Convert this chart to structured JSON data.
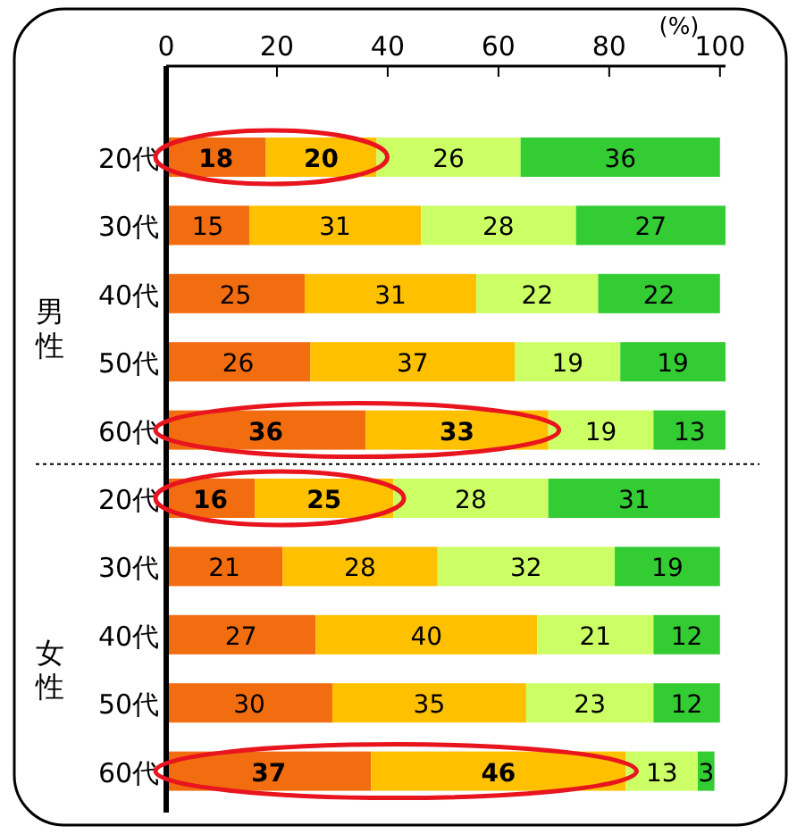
{
  "chart_data": {
    "type": "bar",
    "orientation": "horizontal",
    "stacked": true,
    "data_labels": true,
    "xlabel": "(%)",
    "xlim": [
      0,
      101
    ],
    "xticks": [
      0,
      20,
      40,
      60,
      80,
      100
    ],
    "categories": [
      "20代",
      "30代",
      "40代",
      "50代",
      "60代",
      "20代",
      "30代",
      "40代",
      "50代",
      "60代"
    ],
    "annotations": [
      "男性",
      "女性"
    ],
    "series": [
      {
        "color": "#f26d0f",
        "values": [
          18,
          15,
          25,
          26,
          36,
          16,
          21,
          27,
          30,
          37
        ]
      },
      {
        "color": "#ffc000",
        "values": [
          20,
          31,
          31,
          37,
          33,
          25,
          28,
          40,
          35,
          46
        ]
      },
      {
        "color": "#ccff66",
        "values": [
          26,
          28,
          22,
          19,
          19,
          28,
          32,
          21,
          23,
          13
        ]
      },
      {
        "color": "#33cc33",
        "values": [
          36,
          27,
          22,
          19,
          13,
          31,
          19,
          12,
          12,
          3
        ]
      }
    ]
  }
}
